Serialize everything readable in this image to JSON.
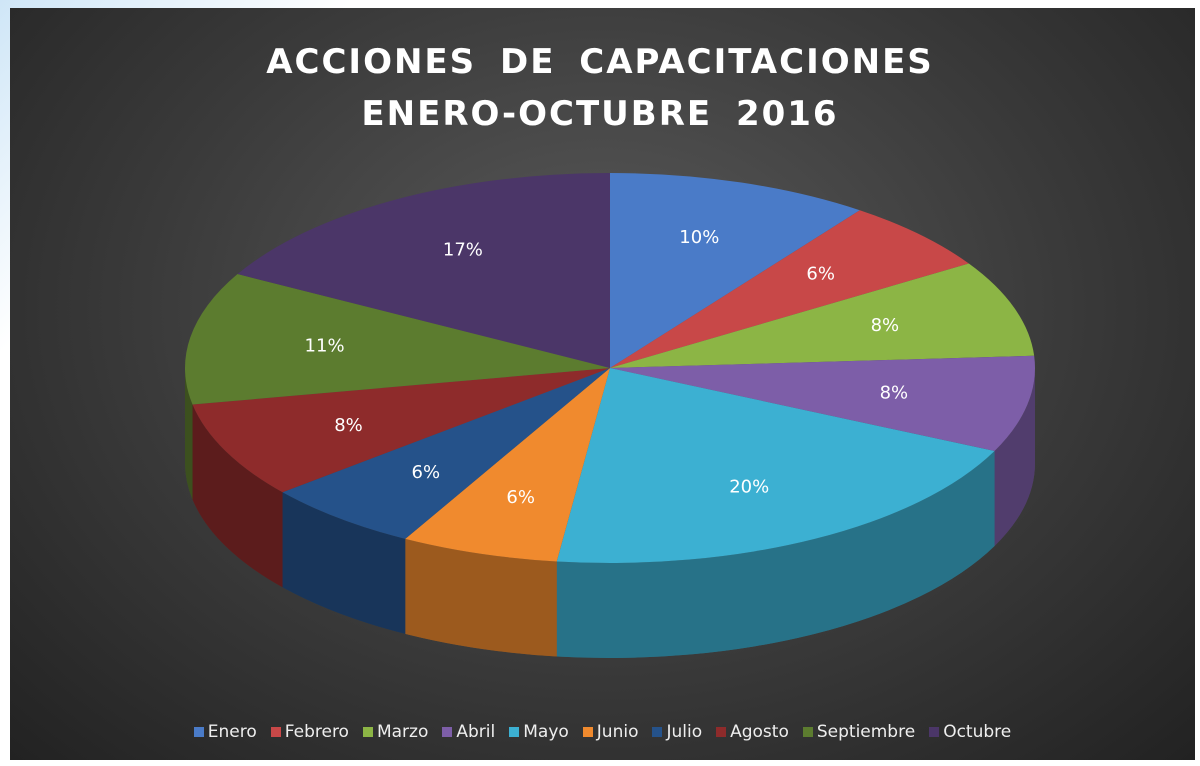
{
  "chart_data": {
    "type": "pie",
    "title": "ACCIONES DE CAPACITACIONES ENERO-OCTUBRE 2016",
    "categories": [
      "Enero",
      "Febrero",
      "Marzo",
      "Abril",
      "Mayo",
      "Junio",
      "Julio",
      "Agosto",
      "Septiembre",
      "Octubre"
    ],
    "values": [
      10,
      6,
      8,
      8,
      20,
      6,
      6,
      8,
      11,
      17
    ],
    "value_labels": [
      "10%",
      "6%",
      "8%",
      "8%",
      "20%",
      "6%",
      "6%",
      "8%",
      "11%",
      "17%"
    ],
    "colors": [
      "#4a7bc8",
      "#c84848",
      "#8cb545",
      "#7d5ea8",
      "#3cb0d2",
      "#f08a2e",
      "#25528a",
      "#8e2b2b",
      "#5c7c2f",
      "#4b3668"
    ]
  }
}
